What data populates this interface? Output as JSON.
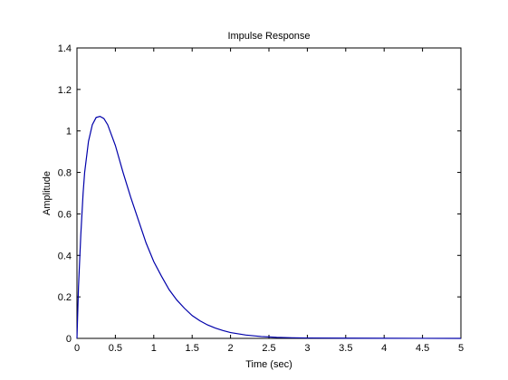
{
  "chart_data": {
    "type": "line",
    "title": "Impulse Response",
    "xlabel": "Time (sec)",
    "ylabel": "Amplitude",
    "xlim": [
      0,
      5
    ],
    "ylim": [
      0,
      1.4
    ],
    "xticks": [
      0,
      0.5,
      1,
      1.5,
      2,
      2.5,
      3,
      3.5,
      4,
      4.5,
      5
    ],
    "xtick_labels": [
      "0",
      "0.5",
      "1",
      "1.5",
      "2",
      "2.5",
      "3",
      "3.5",
      "4",
      "4.5",
      "5"
    ],
    "yticks": [
      0,
      0.2,
      0.4,
      0.6,
      0.8,
      1,
      1.2,
      1.4
    ],
    "ytick_labels": [
      "0",
      "0.2",
      "0.4",
      "0.6",
      "0.8",
      "1",
      "1.2",
      "1.4"
    ],
    "grid": false,
    "line_color": "#0000aa",
    "series": [
      {
        "x": [
          0,
          0.02,
          0.05,
          0.08,
          0.1,
          0.15,
          0.2,
          0.25,
          0.3,
          0.35,
          0.4,
          0.5,
          0.6,
          0.7,
          0.8,
          0.9,
          1.0,
          1.1,
          1.2,
          1.3,
          1.4,
          1.5,
          1.6,
          1.7,
          1.8,
          1.9,
          2.0,
          2.2,
          2.4,
          2.6,
          2.8,
          3.0,
          3.5,
          4.0,
          4.5,
          5.0
        ],
        "y": [
          0,
          0.25,
          0.5,
          0.7,
          0.8,
          0.95,
          1.03,
          1.065,
          1.07,
          1.06,
          1.03,
          0.93,
          0.8,
          0.68,
          0.57,
          0.46,
          0.37,
          0.3,
          0.235,
          0.185,
          0.145,
          0.11,
          0.085,
          0.065,
          0.05,
          0.038,
          0.028,
          0.016,
          0.009,
          0.005,
          0.003,
          0.002,
          0.001,
          0.0005,
          0.0002,
          0.0001
        ]
      }
    ]
  }
}
